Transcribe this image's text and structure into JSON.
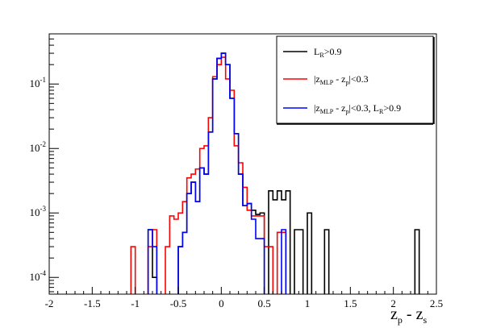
{
  "chart_data": {
    "type": "line",
    "title": "",
    "xlabel": {
      "main": "z",
      "sub1": "p",
      "mid": " - ",
      "main2": "z",
      "sub2": "s"
    },
    "ylabel": "",
    "xlim": [
      -2,
      2.5
    ],
    "ylim": [
      5.5e-05,
      0.6
    ],
    "yscale": "log",
    "x_ticks": [
      -2,
      -1.5,
      -1,
      -0.5,
      0,
      0.5,
      1,
      1.5,
      2,
      2.5
    ],
    "x_tick_labels": [
      "-2",
      "-1.5",
      "-1",
      "-0.5",
      "0",
      "0.5",
      "1",
      "1.5",
      "2",
      "2.5"
    ],
    "y_ticks": [
      0.0001,
      0.001,
      0.01,
      0.1
    ],
    "y_tick_labels": [
      {
        "base": "10",
        "exp": "-4"
      },
      {
        "base": "10",
        "exp": "-3"
      },
      {
        "base": "10",
        "exp": "-2"
      },
      {
        "base": "10",
        "exp": "-1"
      }
    ],
    "grid": false,
    "legend_position": "top-right",
    "series": [
      {
        "legend": {
          "pre": "L",
          "sub": "R",
          "post": ">0.9"
        },
        "color": "#000000",
        "bins": [
          [
            -0.85,
            -0.8,
            0.00055
          ],
          [
            -0.8,
            -0.75,
            0.0001
          ],
          [
            -0.5,
            -0.45,
            0.0003
          ],
          [
            -0.45,
            -0.4,
            0.0005
          ],
          [
            -0.4,
            -0.35,
            0.002
          ],
          [
            -0.35,
            -0.3,
            0.003
          ],
          [
            -0.3,
            -0.25,
            0.0015
          ],
          [
            -0.25,
            -0.2,
            0.005
          ],
          [
            -0.2,
            -0.15,
            0.004
          ],
          [
            -0.15,
            -0.1,
            0.018
          ],
          [
            -0.1,
            -0.05,
            0.12
          ],
          [
            -0.05,
            0.0,
            0.25
          ],
          [
            0.0,
            0.05,
            0.3
          ],
          [
            0.05,
            0.1,
            0.2
          ],
          [
            0.1,
            0.15,
            0.06
          ],
          [
            0.15,
            0.2,
            0.017
          ],
          [
            0.2,
            0.25,
            0.004
          ],
          [
            0.25,
            0.3,
            0.0013
          ],
          [
            0.3,
            0.35,
            0.0014
          ],
          [
            0.35,
            0.4,
            0.0011
          ],
          [
            0.4,
            0.45,
            0.00095
          ],
          [
            0.45,
            0.5,
            0.001
          ],
          [
            0.55,
            0.6,
            0.0022
          ],
          [
            0.6,
            0.65,
            0.0016
          ],
          [
            0.65,
            0.7,
            0.0022
          ],
          [
            0.7,
            0.75,
            0.0016
          ],
          [
            0.75,
            0.8,
            0.0022
          ],
          [
            0.85,
            0.9,
            0.00055
          ],
          [
            0.9,
            0.95,
            0.00055
          ],
          [
            1.0,
            1.05,
            0.001
          ],
          [
            1.2,
            1.25,
            0.00055
          ],
          [
            2.25,
            2.3,
            0.00055
          ]
        ]
      },
      {
        "legend": {
          "pre": "|z",
          "sub": "MLP",
          "post": " - z",
          "sub2": "p",
          "post2": "|<0.3"
        },
        "color": "#ff0000",
        "bins": [
          [
            -1.05,
            -1.0,
            0.0003
          ],
          [
            -0.85,
            -0.8,
            0.0003
          ],
          [
            -0.8,
            -0.75,
            0.00055
          ],
          [
            -0.65,
            -0.6,
            0.0003
          ],
          [
            -0.6,
            -0.55,
            0.0009
          ],
          [
            -0.55,
            -0.5,
            0.0008
          ],
          [
            -0.5,
            -0.45,
            0.001
          ],
          [
            -0.45,
            -0.4,
            0.0015
          ],
          [
            -0.4,
            -0.35,
            0.0035
          ],
          [
            -0.35,
            -0.3,
            0.004
          ],
          [
            -0.3,
            -0.25,
            0.0048
          ],
          [
            -0.25,
            -0.2,
            0.01
          ],
          [
            -0.2,
            -0.15,
            0.011
          ],
          [
            -0.15,
            -0.1,
            0.03
          ],
          [
            -0.1,
            -0.05,
            0.13
          ],
          [
            -0.05,
            0.0,
            0.2
          ],
          [
            0.0,
            0.05,
            0.26
          ],
          [
            0.05,
            0.1,
            0.12
          ],
          [
            0.1,
            0.15,
            0.08
          ],
          [
            0.15,
            0.2,
            0.011
          ],
          [
            0.2,
            0.25,
            0.006
          ],
          [
            0.25,
            0.3,
            0.0025
          ],
          [
            0.3,
            0.35,
            0.0011
          ],
          [
            0.35,
            0.4,
            0.0009
          ],
          [
            0.4,
            0.45,
            0.0009
          ],
          [
            0.45,
            0.5,
            0.0009
          ],
          [
            0.5,
            0.55,
            0.0003
          ],
          [
            0.55,
            0.6,
            0.0003
          ],
          [
            0.65,
            0.7,
            0.0005
          ],
          [
            0.7,
            0.75,
            0.0005
          ]
        ]
      },
      {
        "legend": {
          "pre": "|z",
          "sub": "MLP",
          "post": " - z",
          "sub2": "p",
          "post2": "|<0.3, L",
          "sub3": "R",
          "post3": ">0.9"
        },
        "color": "#0000ff",
        "bins": [
          [
            -0.85,
            -0.8,
            0.00055
          ],
          [
            -0.8,
            -0.75,
            0.0003
          ],
          [
            -0.5,
            -0.45,
            0.0003
          ],
          [
            -0.45,
            -0.4,
            0.0005
          ],
          [
            -0.4,
            -0.35,
            0.002
          ],
          [
            -0.35,
            -0.3,
            0.003
          ],
          [
            -0.3,
            -0.25,
            0.0015
          ],
          [
            -0.25,
            -0.2,
            0.005
          ],
          [
            -0.2,
            -0.15,
            0.004
          ],
          [
            -0.15,
            -0.1,
            0.018
          ],
          [
            -0.1,
            -0.05,
            0.12
          ],
          [
            -0.05,
            0.0,
            0.25
          ],
          [
            0.0,
            0.05,
            0.3
          ],
          [
            0.05,
            0.1,
            0.2
          ],
          [
            0.1,
            0.15,
            0.06
          ],
          [
            0.15,
            0.2,
            0.017
          ],
          [
            0.2,
            0.25,
            0.004
          ],
          [
            0.25,
            0.3,
            0.0013
          ],
          [
            0.3,
            0.35,
            0.0014
          ],
          [
            0.35,
            0.4,
            0.0008
          ],
          [
            0.4,
            0.45,
            0.0004
          ],
          [
            0.45,
            0.5,
            0.0004
          ],
          [
            0.7,
            0.75,
            0.00055
          ]
        ]
      }
    ]
  }
}
